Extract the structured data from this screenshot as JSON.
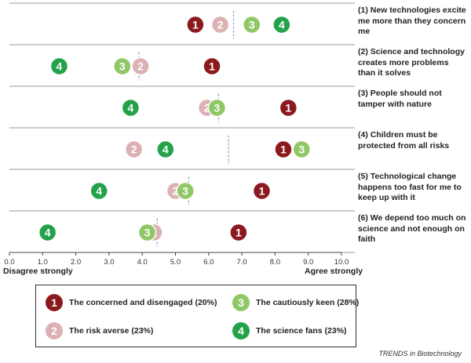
{
  "chart_data": {
    "type": "scatter",
    "xlim": [
      0,
      10
    ],
    "xticks": [
      "0.0",
      "1.0",
      "2.0",
      "3.0",
      "4.0",
      "5.0",
      "6.0",
      "7.0",
      "8.0",
      "9.0",
      "10.0"
    ],
    "x_left_label": "Disagree strongly",
    "x_right_label": "Agree strongly",
    "groups": [
      {
        "id": "1",
        "name": "The concerned and disengaged (20%)",
        "color": "#8b1a1f"
      },
      {
        "id": "2",
        "name": "The risk averse (23%)",
        "color": "#dcb1b3"
      },
      {
        "id": "3",
        "name": "The cautiously keen (28%)",
        "color": "#8fc766"
      },
      {
        "id": "4",
        "name": "The  science fans (23%)",
        "color": "#23a24a"
      }
    ],
    "statements": [
      {
        "label": "(1) New technologies excite me more than they concern me",
        "mean": 6.75,
        "values": {
          "1": 5.6,
          "2": 6.35,
          "3": 7.3,
          "4": 8.2
        }
      },
      {
        "label": "(2) Science and technology creates more problems than it solves",
        "mean": 3.9,
        "values": {
          "1": 6.1,
          "2": 3.95,
          "3": 3.4,
          "4": 1.5
        }
      },
      {
        "label": "(3) People should not tamper with nature",
        "mean": 6.3,
        "values": {
          "1": 8.4,
          "2": 5.95,
          "3": 6.25,
          "4": 3.65
        }
      },
      {
        "label": "(4) Children must be protected from all risks",
        "mean": 6.6,
        "values": {
          "1": 8.25,
          "2": 3.75,
          "3": 8.8,
          "4": 4.7
        }
      },
      {
        "label": "(5) Technological change happens too fast for me to keep up with it",
        "mean": 5.4,
        "values": {
          "1": 7.6,
          "2": 5.0,
          "3": 5.3,
          "4": 2.7
        }
      },
      {
        "label": "(6) We depend too much on science and not enough on faith",
        "mean": 4.45,
        "values": {
          "1": 6.9,
          "2": 4.35,
          "3": 4.15,
          "4": 1.15
        }
      }
    ]
  },
  "source": "TRENDS in Biotechnology"
}
